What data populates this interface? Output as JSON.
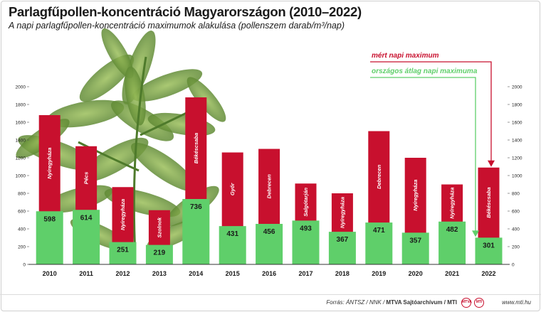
{
  "header": {
    "title": "Parlagfűpollen-koncentráció Magyarországon (2010–2022)",
    "subtitle": "A napi parlagfűpollen-koncentráció maximumok alakulása (pollenszem darab/m³/nap)"
  },
  "footer": {
    "source_prefix": "Forrás: ÁNTSZ / NNK / ",
    "source_bold": "MTVA Sajtóarchívum / MTI",
    "logo_1": "MTVA",
    "logo_2": "MTI",
    "website": "www.mti.hu"
  },
  "colors": {
    "max_series": "#c8102e",
    "avg_series": "#5fcf6a",
    "baseline": "#333333",
    "tick_text": "#222222"
  },
  "chart_data": {
    "type": "bar",
    "categories": [
      "2010",
      "2011",
      "2012",
      "2013",
      "2014",
      "2015",
      "2016",
      "2017",
      "2018",
      "2019",
      "2020",
      "2021",
      "2022"
    ],
    "ylim": [
      0,
      2000
    ],
    "yticks": [
      0,
      200,
      400,
      600,
      800,
      1000,
      1200,
      1400,
      1600,
      1800,
      2000
    ],
    "grid": false,
    "series": [
      {
        "name": "mért napi maximum",
        "values": [
          1680,
          1330,
          870,
          610,
          1880,
          1260,
          1300,
          910,
          800,
          1500,
          1200,
          900,
          1090
        ],
        "cities": [
          "Nyíregyháza",
          "Pécs",
          "Nyíregyháza",
          "Szolnok",
          "Békéscsaba",
          "Győr",
          "Debrecen",
          "Salgótarján",
          "Nyíregyháza",
          "Debrecen",
          "Nyíregyháza",
          "Nyíregyháza",
          "Békéscsaba"
        ]
      },
      {
        "name": "országos átlag napi maximuma",
        "values": [
          598,
          614,
          251,
          219,
          736,
          431,
          456,
          493,
          367,
          471,
          357,
          482,
          301
        ]
      }
    ]
  }
}
